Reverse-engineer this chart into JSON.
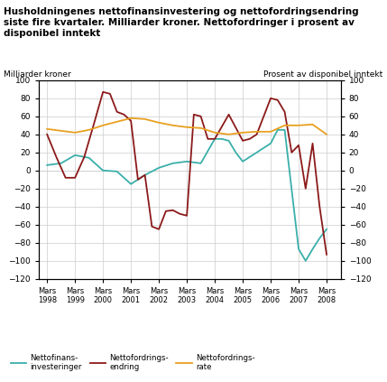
{
  "title": "Husholdningenes nettofinansinvestering og nettofordringsendring\nsiste fire kvartaler. Milliarder kroner. Nettofordringer i prosent av\ndisponibel inntekt",
  "label_left": "Milliarder kroner",
  "label_right": "Prosent av disponibel inntekt",
  "color_finans": "#3aafa9",
  "color_fordring": "#8b1a1a",
  "color_rate": "#e8a020",
  "background_color": "#ffffff",
  "grid_color": "#cccccc",
  "ylim": [
    -120,
    100
  ],
  "yticks": [
    -120,
    -100,
    -80,
    -60,
    -40,
    -20,
    0,
    20,
    40,
    60,
    80,
    100
  ],
  "xticks": [
    1998,
    1999,
    2000,
    2001,
    2002,
    2003,
    2004,
    2005,
    2006,
    2007,
    2008
  ],
  "nettofinans_x": [
    1998,
    1998.5,
    1999,
    1999.5,
    2000,
    2000.5,
    2001,
    2001.5,
    2002,
    2002.5,
    2003,
    2003.5,
    2004,
    2004.25,
    2004.5,
    2004.75,
    2005,
    2005.5,
    2006,
    2006.25,
    2006.5,
    2007,
    2007.25,
    2007.5,
    2007.75,
    2008
  ],
  "nettofinans_y": [
    6,
    8,
    17,
    14,
    0,
    -1,
    -15,
    -5,
    3,
    8,
    10,
    8,
    35,
    35,
    33,
    20,
    10,
    20,
    30,
    45,
    45,
    -87,
    -100,
    -87,
    -75,
    -65
  ],
  "nettofordring_x": [
    1998,
    1998.33,
    1998.66,
    1999,
    1999.33,
    1999.66,
    2000,
    2000.25,
    2000.5,
    2000.75,
    2001,
    2001.25,
    2001.5,
    2001.75,
    2002,
    2002.25,
    2002.5,
    2002.75,
    2003,
    2003.25,
    2003.5,
    2003.75,
    2004,
    2004.5,
    2005,
    2005.25,
    2005.5,
    2006,
    2006.25,
    2006.5,
    2006.75,
    2007,
    2007.25,
    2007.5,
    2007.75,
    2008
  ],
  "nettofordring_y": [
    40,
    15,
    -8,
    -8,
    15,
    50,
    87,
    85,
    65,
    62,
    55,
    -10,
    -5,
    -62,
    -65,
    -45,
    -44,
    -48,
    -50,
    62,
    60,
    35,
    35,
    62,
    33,
    35,
    40,
    80,
    78,
    65,
    20,
    28,
    -20,
    30,
    -40,
    -93
  ],
  "rate_x": [
    1998,
    1998.5,
    1999,
    1999.5,
    2000,
    2000.5,
    2001,
    2001.5,
    2002,
    2002.5,
    2003,
    2003.5,
    2004,
    2004.5,
    2005,
    2005.5,
    2006,
    2006.5,
    2007,
    2007.5,
    2008
  ],
  "rate_y": [
    46,
    44,
    42,
    45,
    50,
    54,
    58,
    57,
    53,
    50,
    48,
    47,
    42,
    40,
    42,
    43,
    43,
    50,
    50,
    51,
    40
  ],
  "legend_labels": [
    "Nettofinans-\ninvesteringer",
    "Nettofordrings-\nendring",
    "Nettofordrings-\nrate"
  ]
}
